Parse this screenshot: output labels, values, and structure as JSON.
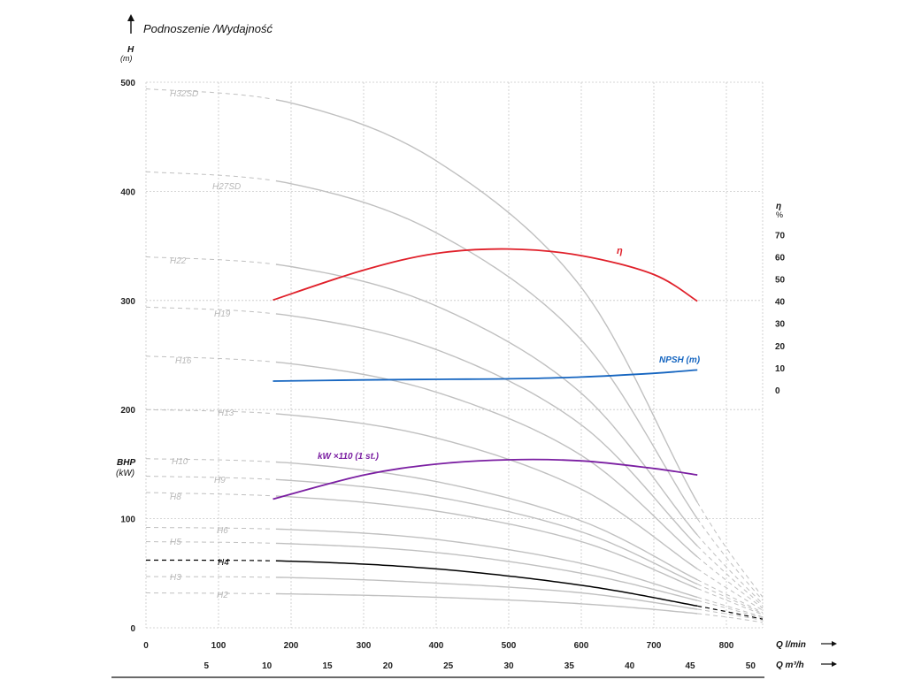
{
  "chart_data": {
    "type": "line",
    "title": "Podnoszenie /Wydajność",
    "y_left": {
      "label": "H",
      "unit": "(m)",
      "ticks": [
        "0",
        "100",
        "200",
        "300",
        "400",
        "500"
      ],
      "ylim": [
        0,
        500
      ],
      "secondary_label": "BHP",
      "secondary_unit": "(kW)"
    },
    "y_right": {
      "label": "η",
      "unit": "%",
      "ticks": [
        "0",
        "10",
        "20",
        "30",
        "40",
        "50",
        "60",
        "70"
      ],
      "ylim": [
        0,
        70
      ]
    },
    "x_primary": {
      "label": "Q l/min",
      "ticks": [
        "0",
        "100",
        "200",
        "300",
        "400",
        "500",
        "600",
        "700",
        "800"
      ],
      "xlim": [
        0,
        850
      ]
    },
    "x_secondary": {
      "label": "Q m³/h",
      "ticks": [
        "5",
        "10",
        "15",
        "20",
        "25",
        "30",
        "35",
        "40",
        "45",
        "50"
      ]
    },
    "grid": true,
    "operating_range_lpm": [
      175,
      760
    ],
    "pump_curves": [
      {
        "name": "H2",
        "head_at_0": 32,
        "points": [
          [
            0,
            32
          ],
          [
            200,
            31
          ],
          [
            400,
            28
          ],
          [
            600,
            22
          ],
          [
            760,
            13
          ],
          [
            850,
            5
          ]
        ]
      },
      {
        "name": "H3",
        "head_at_0": 47,
        "points": [
          [
            0,
            47
          ],
          [
            200,
            46
          ],
          [
            400,
            41
          ],
          [
            600,
            32
          ],
          [
            760,
            17
          ],
          [
            850,
            7
          ]
        ]
      },
      {
        "name": "H4",
        "head_at_0": 62,
        "highlighted": true,
        "points": [
          [
            0,
            62
          ],
          [
            200,
            61
          ],
          [
            400,
            54
          ],
          [
            600,
            39
          ],
          [
            760,
            20
          ],
          [
            850,
            8
          ]
        ]
      },
      {
        "name": "H5",
        "head_at_0": 79,
        "points": [
          [
            0,
            79
          ],
          [
            200,
            77
          ],
          [
            400,
            69
          ],
          [
            600,
            50
          ],
          [
            760,
            25
          ],
          [
            850,
            9
          ]
        ]
      },
      {
        "name": "H6",
        "head_at_0": 92,
        "points": [
          [
            0,
            92
          ],
          [
            200,
            90
          ],
          [
            400,
            81
          ],
          [
            600,
            59
          ],
          [
            760,
            28
          ],
          [
            850,
            10
          ]
        ]
      },
      {
        "name": "H8",
        "head_at_0": 124,
        "points": [
          [
            0,
            124
          ],
          [
            200,
            120
          ],
          [
            400,
            107
          ],
          [
            600,
            79
          ],
          [
            760,
            36
          ],
          [
            850,
            12
          ]
        ]
      },
      {
        "name": "H9",
        "head_at_0": 139,
        "points": [
          [
            0,
            139
          ],
          [
            200,
            135
          ],
          [
            400,
            120
          ],
          [
            600,
            88
          ],
          [
            760,
            40
          ],
          [
            850,
            13
          ]
        ]
      },
      {
        "name": "H10",
        "head_at_0": 155,
        "points": [
          [
            0,
            155
          ],
          [
            200,
            151
          ],
          [
            400,
            134
          ],
          [
            600,
            98
          ],
          [
            760,
            44
          ],
          [
            850,
            14
          ]
        ]
      },
      {
        "name": "H13",
        "head_at_0": 200,
        "points": [
          [
            0,
            200
          ],
          [
            200,
            195
          ],
          [
            400,
            174
          ],
          [
            600,
            127
          ],
          [
            760,
            54
          ],
          [
            850,
            16
          ]
        ]
      },
      {
        "name": "H16",
        "head_at_0": 249,
        "points": [
          [
            0,
            249
          ],
          [
            200,
            242
          ],
          [
            400,
            216
          ],
          [
            600,
            158
          ],
          [
            760,
            65
          ],
          [
            850,
            18
          ]
        ]
      },
      {
        "name": "H19",
        "head_at_0": 294,
        "points": [
          [
            0,
            294
          ],
          [
            200,
            286
          ],
          [
            400,
            255
          ],
          [
            600,
            186
          ],
          [
            760,
            75
          ],
          [
            850,
            20
          ]
        ]
      },
      {
        "name": "H22",
        "head_at_0": 340,
        "points": [
          [
            0,
            340
          ],
          [
            200,
            331
          ],
          [
            400,
            295
          ],
          [
            600,
            215
          ],
          [
            760,
            85
          ],
          [
            850,
            22
          ]
        ]
      },
      {
        "name": "H27SD",
        "head_at_0": 418,
        "points": [
          [
            0,
            418
          ],
          [
            200,
            407
          ],
          [
            400,
            362
          ],
          [
            600,
            264
          ],
          [
            760,
            100
          ],
          [
            850,
            25
          ]
        ]
      },
      {
        "name": "H32SD",
        "head_at_0": 494,
        "points": [
          [
            0,
            494
          ],
          [
            200,
            481
          ],
          [
            400,
            428
          ],
          [
            600,
            312
          ],
          [
            760,
            115
          ],
          [
            850,
            28
          ]
        ]
      }
    ],
    "efficiency": {
      "name": "η",
      "color": "#e0202a",
      "points": [
        [
          175,
          40.5
        ],
        [
          300,
          54
        ],
        [
          400,
          61.5
        ],
        [
          500,
          63.5
        ],
        [
          600,
          60.5
        ],
        [
          700,
          52
        ],
        [
          760,
          40
        ]
      ]
    },
    "npsh": {
      "name": "NPSH (m)",
      "color": "#1565c0",
      "points": [
        [
          175,
          4
        ],
        [
          300,
          4.5
        ],
        [
          400,
          4.8
        ],
        [
          500,
          5
        ],
        [
          600,
          5.8
        ],
        [
          700,
          7.5
        ],
        [
          760,
          9
        ]
      ]
    },
    "power": {
      "name": "kW ×110 (1 st.)",
      "color": "#7b1fa2",
      "points": [
        [
          175,
          118
        ],
        [
          300,
          140
        ],
        [
          400,
          150
        ],
        [
          500,
          154
        ],
        [
          600,
          153
        ],
        [
          700,
          146
        ],
        [
          760,
          140
        ]
      ]
    },
    "colors": {
      "grid": "#c8c8c8",
      "pump": "#c0c0c0",
      "pump_label": "#b8b8b8",
      "highlight": "#000000"
    }
  }
}
